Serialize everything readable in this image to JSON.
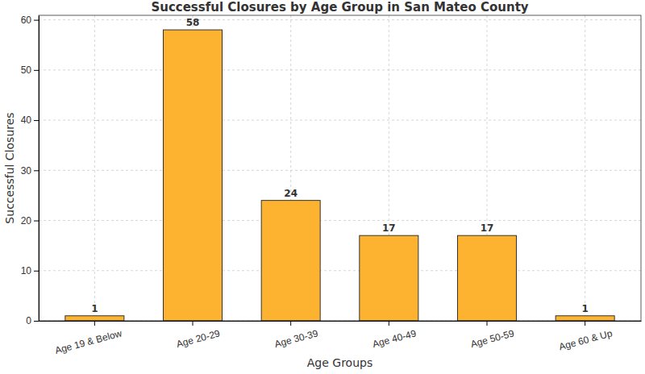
{
  "chart_data": {
    "type": "bar",
    "title": "Successful Closures by Age Group in San Mateo County",
    "x_label": "Age Groups",
    "y_label": "Successful Closures",
    "categories": [
      "Age 19 & Below",
      "Age 20-29",
      "Age 30-39",
      "Age 40-49",
      "Age 50-59",
      "Age 60 & Up"
    ],
    "values": [
      1,
      58,
      24,
      17,
      17,
      1
    ],
    "color": "#fdb32f",
    "ylim": [
      0,
      60.9
    ],
    "yticks": [
      0,
      10,
      20,
      30,
      40,
      50,
      60
    ],
    "grid": true,
    "data_labels": true
  }
}
